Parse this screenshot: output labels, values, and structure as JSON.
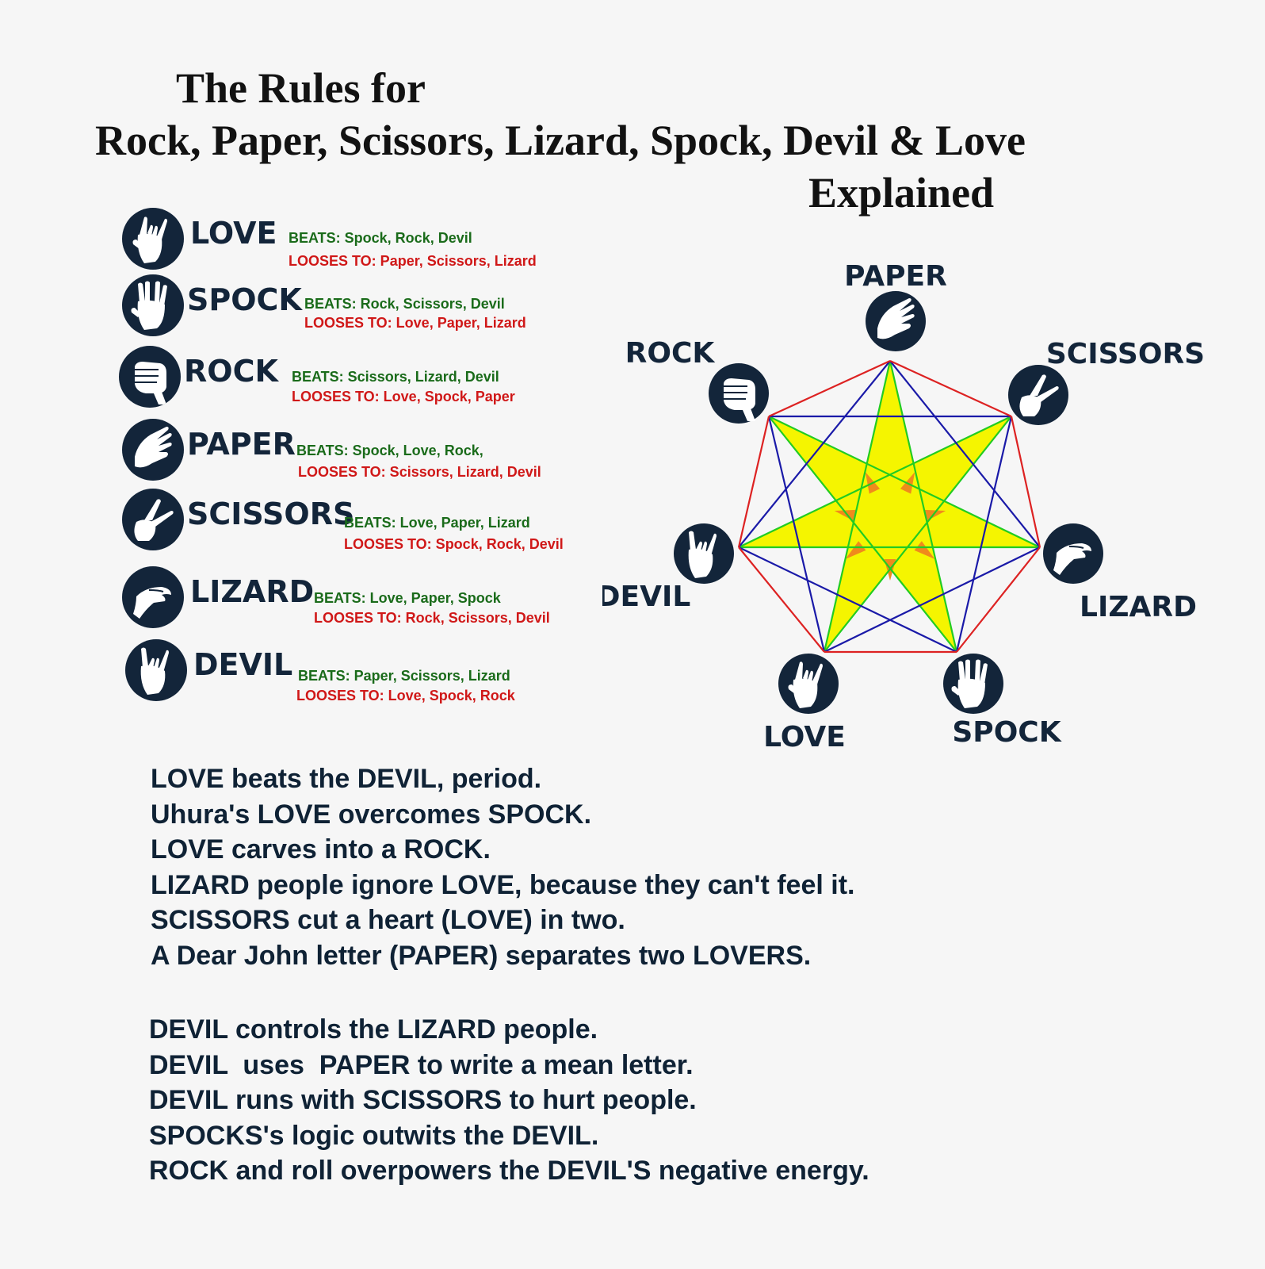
{
  "title": {
    "line1": "The Rules for",
    "line2": "Rock, Paper, Scissors, Lizard, Spock, Devil & Love",
    "line3": "Explained"
  },
  "rules": [
    {
      "name": "LOVE",
      "icon": "love-hand-icon",
      "beats": "BEATS: Spock, Rock, Devil",
      "loses": "LOOSES TO: Paper, Scissors, Lizard"
    },
    {
      "name": "SPOCK",
      "icon": "spock-hand-icon",
      "beats": "BEATS: Rock, Scissors, Devil",
      "loses": "LOOSES TO: Love, Paper, Lizard"
    },
    {
      "name": "ROCK",
      "icon": "rock-fist-icon",
      "beats": "BEATS: Scissors, Lizard, Devil",
      "loses": "LOOSES TO: Love, Spock, Paper"
    },
    {
      "name": "PAPER",
      "icon": "paper-hand-icon",
      "beats": "BEATS: Spock, Love, Rock,",
      "loses": "LOOSES TO: Scissors, Lizard, Devil"
    },
    {
      "name": "SCISSORS",
      "icon": "scissors-hand-icon",
      "beats": "BEATS: Love, Paper, Lizard",
      "loses": "LOOSES TO: Spock, Rock, Devil"
    },
    {
      "name": "LIZARD",
      "icon": "lizard-hand-icon",
      "beats": "BEATS: Love, Paper, Spock",
      "loses": "LOOSES TO: Rock, Scissors, Devil"
    },
    {
      "name": "DEVIL",
      "icon": "devil-hand-icon",
      "beats": "BEATS: Paper, Scissors, Lizard",
      "loses": "LOOSES TO: Love, Spock, Rock"
    }
  ],
  "diagram": {
    "nodes": [
      {
        "label": "PAPER",
        "icon": "paper-hand-icon"
      },
      {
        "label": "SCISSORS",
        "icon": "scissors-hand-icon"
      },
      {
        "label": "LIZARD",
        "icon": "lizard-hand-icon"
      },
      {
        "label": "SPOCK",
        "icon": "spock-hand-icon"
      },
      {
        "label": "LOVE",
        "icon": "love-hand-icon"
      },
      {
        "label": "DEVIL",
        "icon": "devil-hand-icon"
      },
      {
        "label": "ROCK",
        "icon": "rock-fist-icon"
      }
    ],
    "colors": {
      "outline": "#dd2222",
      "inner_star": "#1a1aa8",
      "outer_star": "#22cc22",
      "star_fill": "#f5f500",
      "triangle_fill": "#f08a1c",
      "icon_bg": "#13253a"
    }
  },
  "love_explanations": [
    "LOVE beats the DEVIL, period.",
    "Uhura's LOVE overcomes SPOCK.",
    "LOVE carves into a ROCK.",
    "LIZARD people ignore LOVE, because they can't feel it.",
    "SCISSORS cut a heart (LOVE) in two.",
    "A Dear John letter (PAPER) separates two LOVERS."
  ],
  "devil_explanations": [
    "DEVIL controls the LIZARD people.",
    "DEVIL  uses  PAPER to write a mean letter.",
    "DEVIL runs with SCISSORS to hurt people.",
    "SPOCKS's logic outwits the DEVIL.",
    "ROCK and roll overpowers the DEVIL'S negative energy."
  ]
}
